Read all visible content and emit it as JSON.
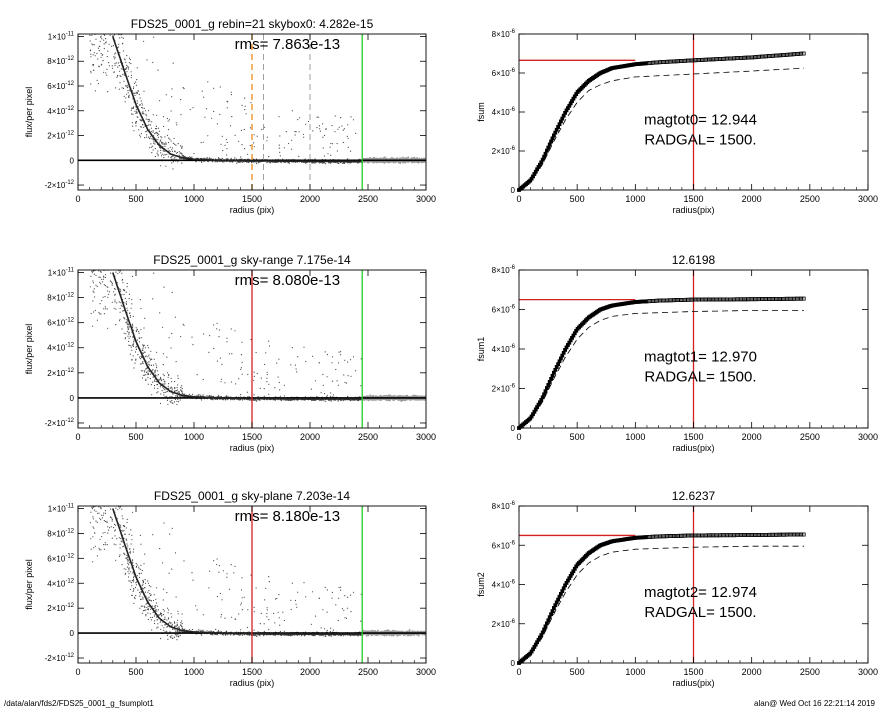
{
  "footer": {
    "left": "/data/alan/fds2/FDS25_0001_g_fsumplot1",
    "right": "alan@  Wed Oct 16 22:21:14 2019"
  },
  "colors": {
    "axis": "#000000",
    "scatter_dark": "#4a4a4a",
    "scatter_light": "#9a9a9a",
    "red": "#d42020",
    "green": "#22cc22",
    "orange": "#e88a1a",
    "gray_dash": "#888888"
  },
  "chart_data": [
    {
      "type": "scatter",
      "title": "FDS25_0001_g rebin=21    skybox0:  4.282e-15",
      "annotation": "rms= 7.863e-13",
      "xlabel": "radius (pix)",
      "ylabel": "flux/per pixel",
      "xlim": [
        0,
        3000
      ],
      "ylim": [
        -2.4e-12,
        1.02e-11
      ],
      "xticks": [
        0,
        500,
        1000,
        1500,
        2000,
        2500,
        3000
      ],
      "xticklabels": [
        "0",
        "500",
        "1000",
        "1500",
        "2000",
        "2500",
        "3000"
      ],
      "yticks": [
        -2e-12,
        0,
        2e-12,
        4e-12,
        6e-12,
        8e-12,
        1e-11
      ],
      "yticklabels": [
        [
          "-2×10",
          "-12"
        ],
        [
          "0",
          ""
        ],
        [
          "2×10",
          "-12"
        ],
        [
          "4×10",
          "-12"
        ],
        [
          "6×10",
          "-12"
        ],
        [
          "8×10",
          "-12"
        ],
        [
          "1×10",
          "-11"
        ]
      ],
      "profile": {
        "x": [
          300,
          400,
          500,
          600,
          700,
          800,
          900,
          1000,
          1200,
          1500,
          2000,
          2450
        ],
        "y": [
          1e-11,
          7.2e-12,
          4.5e-12,
          2.5e-12,
          1.2e-12,
          5e-13,
          2e-13,
          8e-14,
          0,
          -5e-14,
          -8e-14,
          -8e-14
        ]
      },
      "vlines": [
        {
          "x": 1500,
          "color": "orange",
          "style": "dash"
        },
        {
          "x": 1600,
          "color": "gray",
          "style": "dash"
        },
        {
          "x": 2000,
          "color": "gray",
          "style": "dash"
        },
        {
          "x": 2450,
          "color": "green",
          "style": "solid"
        }
      ],
      "hline": 0,
      "grid": false
    },
    {
      "type": "line",
      "title": "",
      "ylabel": "fsum",
      "xlabel": "radius(pix)",
      "xlim": [
        0,
        3000
      ],
      "ylim": [
        0,
        8e-06
      ],
      "xticks": [
        0,
        500,
        1000,
        1500,
        2000,
        2500,
        3000
      ],
      "xticklabels": [
        "0",
        "500",
        "1000",
        "1500",
        "2000",
        "2500",
        "3000"
      ],
      "yticks": [
        0,
        2e-06,
        4e-06,
        6e-06,
        8e-06
      ],
      "yticklabels": [
        [
          "0",
          ""
        ],
        [
          "2×10",
          "-6"
        ],
        [
          "4×10",
          "-6"
        ],
        [
          "6×10",
          "-6"
        ],
        [
          "8×10",
          "-6"
        ]
      ],
      "annotations": [
        "magtot0=  12.944",
        "RADGAL=   1500."
      ],
      "asymptote": 6.65e-06,
      "asymptote_to": 1000,
      "vline": 1500,
      "curve": {
        "x": [
          0,
          100,
          200,
          300,
          400,
          500,
          600,
          700,
          800,
          1000,
          1200,
          1500,
          2000,
          2450
        ],
        "y": [
          0,
          5e-07,
          1.5e-06,
          2.8e-06,
          4e-06,
          5e-06,
          5.6e-06,
          6e-06,
          6.25e-06,
          6.45e-06,
          6.55e-06,
          6.65e-06,
          6.8e-06,
          7e-06
        ]
      },
      "dashed": {
        "x": [
          0,
          100,
          200,
          300,
          400,
          500,
          600,
          700,
          800,
          1000,
          1500,
          2000,
          2450
        ],
        "y": [
          0,
          4.5e-07,
          1.3e-06,
          2.5e-06,
          3.6e-06,
          4.5e-06,
          5.1e-06,
          5.4e-06,
          5.6e-06,
          5.8e-06,
          5.95e-06,
          6.1e-06,
          6.25e-06
        ]
      },
      "grid": false
    },
    {
      "type": "scatter",
      "title": "FDS25_0001_g sky-range  7.175e-14",
      "annotation": "rms= 8.080e-13",
      "xlabel": "radius (pix)",
      "ylabel": "flux/per pixel",
      "xlim": [
        0,
        3000
      ],
      "ylim": [
        -2.4e-12,
        1.02e-11
      ],
      "xticks": [
        0,
        500,
        1000,
        1500,
        2000,
        2500,
        3000
      ],
      "xticklabels": [
        "0",
        "500",
        "1000",
        "1500",
        "2000",
        "2500",
        "3000"
      ],
      "yticks": [
        -2e-12,
        0,
        2e-12,
        4e-12,
        6e-12,
        8e-12,
        1e-11
      ],
      "yticklabels": [
        [
          "-2×10",
          "-12"
        ],
        [
          "0",
          ""
        ],
        [
          "2×10",
          "-12"
        ],
        [
          "4×10",
          "-12"
        ],
        [
          "6×10",
          "-12"
        ],
        [
          "8×10",
          "-12"
        ],
        [
          "1×10",
          "-11"
        ]
      ],
      "profile": {
        "x": [
          300,
          400,
          500,
          600,
          700,
          800,
          900,
          1000,
          1200,
          1500,
          2000,
          2450
        ],
        "y": [
          1e-11,
          7.2e-12,
          4.5e-12,
          2.5e-12,
          1.2e-12,
          5e-13,
          2e-13,
          8e-14,
          0,
          -5e-14,
          -8e-14,
          -8e-14
        ]
      },
      "vlines": [
        {
          "x": 1500,
          "color": "red",
          "style": "solid"
        },
        {
          "x": 2450,
          "color": "green",
          "style": "solid"
        }
      ],
      "hline": 0,
      "grid": false
    },
    {
      "type": "line",
      "title": "12.6198",
      "ylabel": "fsum1",
      "xlabel": "radius(pix)",
      "xlim": [
        0,
        3000
      ],
      "ylim": [
        0,
        8e-06
      ],
      "xticks": [
        0,
        500,
        1000,
        1500,
        2000,
        2500,
        3000
      ],
      "xticklabels": [
        "0",
        "500",
        "1000",
        "1500",
        "2000",
        "2500",
        "3000"
      ],
      "yticks": [
        0,
        2e-06,
        4e-06,
        6e-06,
        8e-06
      ],
      "yticklabels": [
        [
          "0",
          ""
        ],
        [
          "2×10",
          "-6"
        ],
        [
          "4×10",
          "-6"
        ],
        [
          "6×10",
          "-6"
        ],
        [
          "8×10",
          "-6"
        ]
      ],
      "annotations": [
        "magtot1=  12.970",
        "RADGAL=   1500."
      ],
      "asymptote": 6.5e-06,
      "asymptote_to": 1000,
      "vline": 1500,
      "curve": {
        "x": [
          0,
          100,
          200,
          300,
          400,
          500,
          600,
          700,
          800,
          1000,
          1200,
          1500,
          2000,
          2450
        ],
        "y": [
          0,
          5e-07,
          1.5e-06,
          2.8e-06,
          4e-06,
          5e-06,
          5.6e-06,
          6e-06,
          6.2e-06,
          6.38e-06,
          6.45e-06,
          6.5e-06,
          6.52e-06,
          6.55e-06
        ]
      },
      "dashed": {
        "x": [
          0,
          100,
          200,
          300,
          400,
          500,
          600,
          700,
          800,
          1000,
          1500,
          2000,
          2450
        ],
        "y": [
          0,
          4.5e-07,
          1.3e-06,
          2.5e-06,
          3.6e-06,
          4.5e-06,
          5.1e-06,
          5.45e-06,
          5.65e-06,
          5.8e-06,
          5.9e-06,
          5.95e-06,
          5.95e-06
        ]
      },
      "grid": false
    },
    {
      "type": "scatter",
      "title": "FDS25_0001_g sky-plane  7.203e-14",
      "annotation": "rms= 8.180e-13",
      "xlabel": "radius (pix)",
      "ylabel": "flux/per pixel",
      "xlim": [
        0,
        3000
      ],
      "ylim": [
        -2.4e-12,
        1.02e-11
      ],
      "xticks": [
        0,
        500,
        1000,
        1500,
        2000,
        2500,
        3000
      ],
      "xticklabels": [
        "0",
        "500",
        "1000",
        "1500",
        "2000",
        "2500",
        "3000"
      ],
      "yticks": [
        -2e-12,
        0,
        2e-12,
        4e-12,
        6e-12,
        8e-12,
        1e-11
      ],
      "yticklabels": [
        [
          "-2×10",
          "-12"
        ],
        [
          "0",
          ""
        ],
        [
          "2×10",
          "-12"
        ],
        [
          "4×10",
          "-12"
        ],
        [
          "6×10",
          "-12"
        ],
        [
          "8×10",
          "-12"
        ],
        [
          "1×10",
          "-11"
        ]
      ],
      "profile": {
        "x": [
          300,
          400,
          500,
          600,
          700,
          800,
          900,
          1000,
          1200,
          1500,
          2000,
          2450
        ],
        "y": [
          1e-11,
          7.2e-12,
          4.5e-12,
          2.5e-12,
          1.2e-12,
          5e-13,
          2e-13,
          8e-14,
          0,
          -5e-14,
          -8e-14,
          -8e-14
        ]
      },
      "vlines": [
        {
          "x": 1500,
          "color": "red",
          "style": "solid"
        },
        {
          "x": 2450,
          "color": "green",
          "style": "solid"
        }
      ],
      "hline": 0,
      "grid": false
    },
    {
      "type": "line",
      "title": "12.6237",
      "ylabel": "fsum2",
      "xlabel": "radius(pix)",
      "xlim": [
        0,
        3000
      ],
      "ylim": [
        0,
        8e-06
      ],
      "xticks": [
        0,
        500,
        1000,
        1500,
        2000,
        2500,
        3000
      ],
      "xticklabels": [
        "0",
        "500",
        "1000",
        "1500",
        "2000",
        "2500",
        "3000"
      ],
      "yticks": [
        0,
        2e-06,
        4e-06,
        6e-06,
        8e-06
      ],
      "yticklabels": [
        [
          "0",
          ""
        ],
        [
          "2×10",
          "-6"
        ],
        [
          "4×10",
          "-6"
        ],
        [
          "6×10",
          "-6"
        ],
        [
          "8×10",
          "-6"
        ]
      ],
      "annotations": [
        "magtot2=  12.974",
        "RADGAL=   1500."
      ],
      "asymptote": 6.5e-06,
      "asymptote_to": 1000,
      "vline": 1500,
      "curve": {
        "x": [
          0,
          100,
          200,
          300,
          400,
          500,
          600,
          700,
          800,
          1000,
          1200,
          1500,
          2000,
          2450
        ],
        "y": [
          0,
          5e-07,
          1.5e-06,
          2.8e-06,
          4e-06,
          5e-06,
          5.6e-06,
          6e-06,
          6.2e-06,
          6.38e-06,
          6.45e-06,
          6.5e-06,
          6.52e-06,
          6.55e-06
        ]
      },
      "dashed": {
        "x": [
          0,
          100,
          200,
          300,
          400,
          500,
          600,
          700,
          800,
          1000,
          1500,
          2000,
          2450
        ],
        "y": [
          0,
          4.5e-07,
          1.3e-06,
          2.5e-06,
          3.6e-06,
          4.5e-06,
          5.1e-06,
          5.45e-06,
          5.65e-06,
          5.8e-06,
          5.9e-06,
          5.95e-06,
          5.95e-06
        ]
      },
      "grid": false
    }
  ]
}
